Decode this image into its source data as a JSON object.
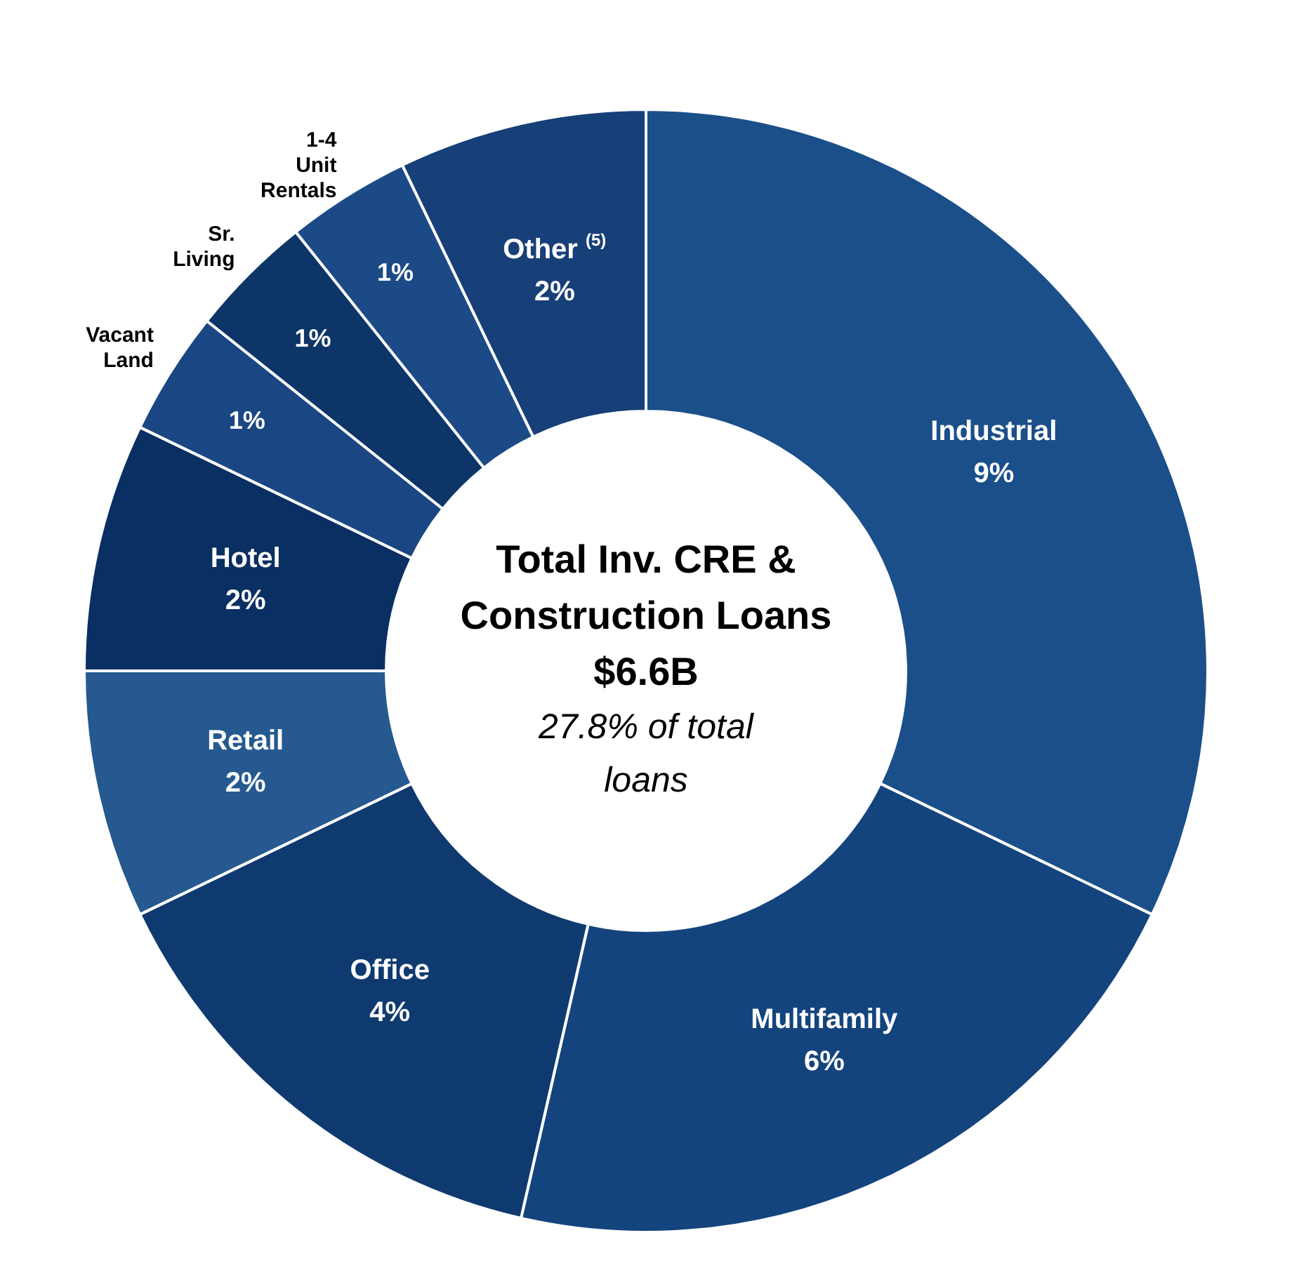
{
  "chart_data": {
    "type": "donut",
    "title": "Total Inv. CRE & Construction Loans",
    "subtitle": "$6.6B",
    "annotations": [
      "27.8% of total loans"
    ],
    "categories": [
      "Industrial",
      "Multifamily",
      "Office",
      "Retail",
      "Hotel",
      "Vacant Land",
      "Sr. Living",
      "1-4 Unit Rentals",
      "Other $^{(5)}$"
    ],
    "values": [
      9,
      6,
      4,
      2,
      2,
      1,
      1,
      1,
      2
    ],
    "value_labels": [
      "9%",
      "6%",
      "4%",
      "2%",
      "2%",
      "1%",
      "1%",
      "1%",
      "2%"
    ],
    "colors": [
      "#1b4f8a",
      "#14447e",
      "#0f3a70",
      "#25598f",
      "#0a2f62",
      "#1a4783",
      "#0d3568",
      "#1c4a87",
      "#173f78"
    ],
    "legend": false
  }
}
